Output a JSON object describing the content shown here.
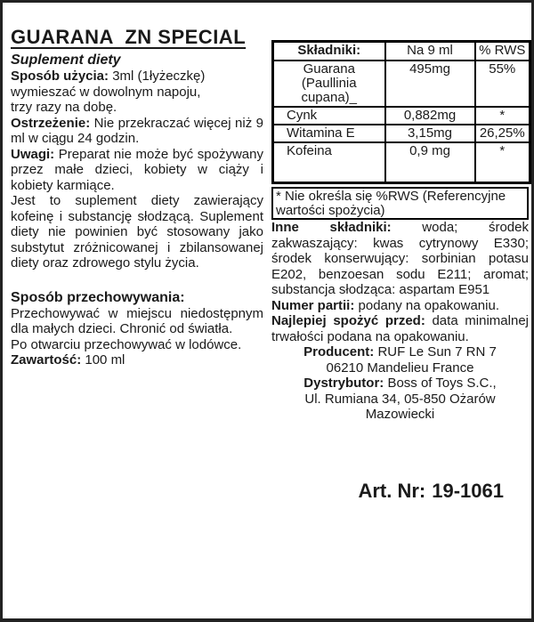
{
  "colors": {
    "text": "#1a1a1a",
    "background": "#ffffff",
    "border": "#000000"
  },
  "header": {
    "title": "GUARANA  ZN SPECIAL",
    "subtitle": "Suplement diety"
  },
  "left": {
    "usage": {
      "label": "Sposób użycia:",
      "text": " 3ml (1łyżeczkę)\nwymieszać w dowolnym napoju,\ntrzy razy na dobę."
    },
    "warning": {
      "label": "Ostrzeżenie:",
      "text": " Nie przekraczać więcej niż 9 ml w ciągu 24 godzin."
    },
    "notes": {
      "label": "Uwagi:",
      "text": " Preparat nie może być spożywany przez małe dzieci, kobiety w ciąży i kobiety karmiące.",
      "text2": "Jest to suplement diety zawierający kofeinę i substancję słodzącą. Suplement diety nie powinien być stosowany jako substytut zróżnicowanej i zbilansowanej diety oraz zdrowego stylu życia."
    },
    "storage": {
      "label": "Sposób przechowywania:",
      "text": "Przechowywać w miejscu niedostępnym dla małych dzieci. Chronić od światła.\nPo otwarciu przechowywać w lodówce."
    },
    "content": {
      "label": "Zawartość:",
      "text": " 100 ml"
    }
  },
  "table": {
    "headers": [
      "Składniki:",
      "Na 9 ml",
      "% RWS"
    ],
    "rows": [
      {
        "name": "Guarana\n(Paullinia cupana)_",
        "amount": "495mg",
        "rws": "55%"
      },
      {
        "name": "Cynk",
        "amount": "0,882mg",
        "rws": "*"
      },
      {
        "name": "Witamina E",
        "amount": "3,15mg",
        "rws": "26,25%"
      },
      {
        "name": "Kofeina",
        "amount": "0,9 mg",
        "rws": "*"
      }
    ],
    "footnote": "* Nie określa się %RWS (Referencyjne wartości spożycia)"
  },
  "right": {
    "other_ingredients": {
      "label": "Inne składniki:",
      "text": " woda; środek zakwaszający: kwas cytrynowy E330; środek konserwujący: sorbinian potasu E202, benzoesan sodu E211; aromat; substancja słodząca: aspartam E951"
    },
    "batch": {
      "label": "Numer partii:",
      "text": " podany na opakowaniu."
    },
    "best_before": {
      "label": "Najlepiej spożyć przed:",
      "text": " data minimalnej trwałości podana na opakowaniu."
    },
    "producer": {
      "label": "Producent:",
      "text": " RUF Le Sun 7 RN 7\n06210 Mandelieu France"
    },
    "distributor": {
      "label": "Dystrybutor:",
      "text": " Boss of Toys S.C.,\nUl. Rumiana 34, 05-850 Ożarów\nMazowiecki"
    },
    "art_nr": {
      "label": "Art. Nr:",
      "value": "19-1061"
    }
  }
}
